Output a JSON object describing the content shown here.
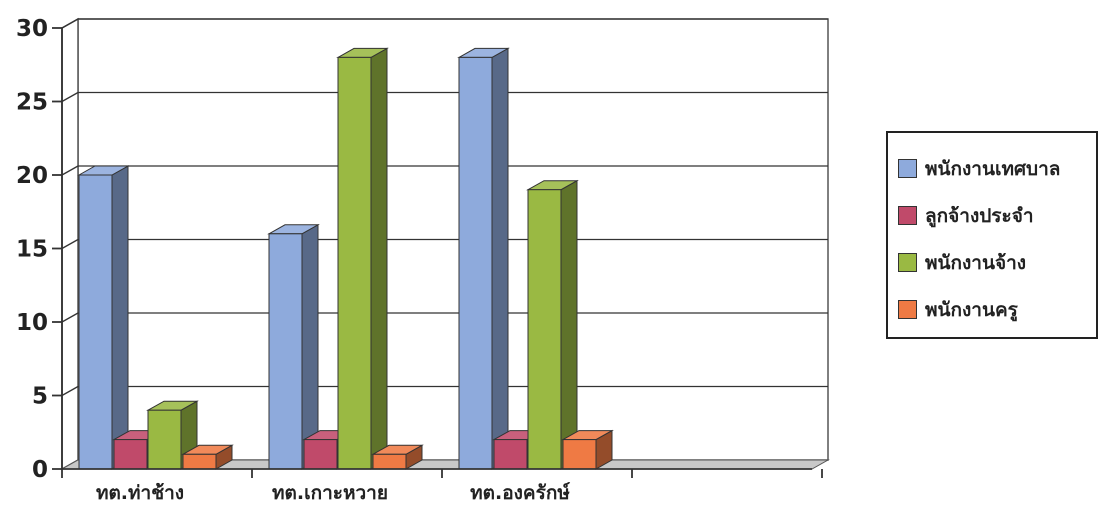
{
  "chart_data": {
    "type": "bar",
    "title": "",
    "xlabel": "",
    "ylabel": "",
    "categories": [
      "ทต.ท่าช้าง",
      "ทต.เกาะหวาย",
      "ทต.องครักษ์",
      ""
    ],
    "series": [
      {
        "name": "พนักงานเทศบาล",
        "values": [
          20,
          16,
          28,
          null
        ],
        "color": "#8eaadc"
      },
      {
        "name": "ลูกจ้างประจำ",
        "values": [
          2,
          2,
          2,
          null
        ],
        "color": "#c04a6a"
      },
      {
        "name": "พนักงานจ้าง",
        "values": [
          4,
          28,
          19,
          null
        ],
        "color": "#9ab943"
      },
      {
        "name": "พนักงานครู",
        "values": [
          1,
          1,
          2,
          null
        ],
        "color": "#ef7a44"
      }
    ],
    "ylim": [
      0,
      30
    ],
    "yticks": [
      0,
      5,
      10,
      15,
      20,
      25,
      30
    ],
    "grid": true,
    "legend_position": "right",
    "style": "3d-clustered-column"
  }
}
